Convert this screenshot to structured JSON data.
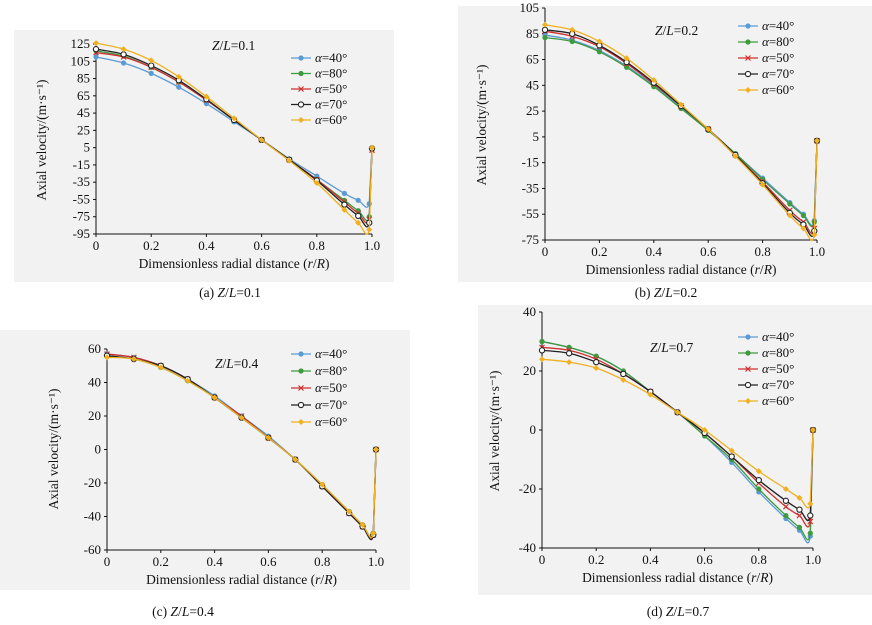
{
  "figure": {
    "series_colors": {
      "α=40°": "#5b9bd5",
      "α=80°": "#3e9a3e",
      "α=50°": "#d03030",
      "α=70°": "#222222",
      "α=60°": "#f0b020"
    }
  },
  "chart_data": [
    {
      "type": "line",
      "panel": "a",
      "caption": "(a) Z/L=0.1",
      "annotation": "Z/L=0.1",
      "xlabel": "Dimensionless radial distance (r/R)",
      "ylabel": "Axial velocity/(m·s⁻¹)",
      "xlim": [
        0,
        1.0
      ],
      "ylim": [
        -95,
        125
      ],
      "xticks": [
        0,
        0.2,
        0.4,
        0.6,
        0.8,
        1.0
      ],
      "yticks": [
        125,
        105,
        85,
        65,
        45,
        25,
        5,
        -15,
        -35,
        -55,
        -75,
        -95
      ],
      "legend_position": "top-right",
      "x": [
        0,
        0.1,
        0.2,
        0.3,
        0.4,
        0.5,
        0.6,
        0.7,
        0.8,
        0.9,
        0.95,
        0.99,
        1.0
      ],
      "series": [
        {
          "name": "α=40°",
          "values": [
            110,
            103,
            91,
            75,
            56,
            35,
            14,
            -8,
            -28,
            -48,
            -56,
            -60,
            5
          ]
        },
        {
          "name": "α=80°",
          "values": [
            117,
            111,
            98,
            81,
            60,
            37,
            14,
            -9,
            -32,
            -56,
            -68,
            -75,
            3
          ]
        },
        {
          "name": "α=50°",
          "values": [
            115,
            110,
            98,
            81,
            60,
            37,
            14,
            -9,
            -32,
            -58,
            -71,
            -78,
            2
          ]
        },
        {
          "name": "α=70°",
          "values": [
            119,
            113,
            100,
            83,
            61,
            37,
            14,
            -9,
            -33,
            -61,
            -74,
            -82,
            4
          ]
        },
        {
          "name": "α=60°",
          "values": [
            126,
            119,
            106,
            87,
            64,
            39,
            14,
            -10,
            -36,
            -67,
            -82,
            -90,
            5
          ]
        }
      ]
    },
    {
      "type": "line",
      "panel": "b",
      "caption": "(b) Z/L=0.2",
      "annotation": "Z/L=0.2",
      "xlabel": "Dimensionless radial distance (r/R)",
      "ylabel": "Axial velocity/(m·s⁻¹)",
      "xlim": [
        0,
        1.0
      ],
      "ylim": [
        -75,
        105
      ],
      "xticks": [
        0,
        0.2,
        0.4,
        0.6,
        0.8,
        1.0
      ],
      "yticks": [
        105,
        85,
        65,
        45,
        25,
        5,
        -15,
        -35,
        -55,
        -75
      ],
      "legend_position": "top-right",
      "x": [
        0,
        0.1,
        0.2,
        0.3,
        0.4,
        0.5,
        0.6,
        0.7,
        0.8,
        0.9,
        0.95,
        0.99,
        1.0
      ],
      "series": [
        {
          "name": "α=40°",
          "values": [
            84,
            80,
            72,
            60,
            45,
            28,
            11,
            -8,
            -27,
            -46,
            -55,
            -60,
            2
          ]
        },
        {
          "name": "α=80°",
          "values": [
            82,
            79,
            71,
            59,
            44,
            27,
            10,
            -8,
            -28,
            -47,
            -56,
            -61,
            2
          ]
        },
        {
          "name": "α=50°",
          "values": [
            87,
            83,
            75,
            62,
            46,
            29,
            11,
            -9,
            -30,
            -52,
            -61,
            -66,
            2
          ]
        },
        {
          "name": "α=70°",
          "values": [
            88,
            85,
            76,
            63,
            47,
            29,
            11,
            -9,
            -31,
            -54,
            -63,
            -68,
            2
          ]
        },
        {
          "name": "α=60°",
          "values": [
            92,
            88,
            79,
            66,
            49,
            30,
            11,
            -10,
            -32,
            -56,
            -66,
            -71,
            2
          ]
        }
      ]
    },
    {
      "type": "line",
      "panel": "c",
      "caption": "(c) Z/L=0.4",
      "annotation": "Z/L=0.4",
      "xlabel": "Dimensionless radial distance (r/R)",
      "ylabel": "Axial velocity/(m·s⁻¹)",
      "xlim": [
        0,
        1.0
      ],
      "ylim": [
        -60,
        60
      ],
      "xticks": [
        0,
        0.2,
        0.4,
        0.6,
        0.8,
        1.0
      ],
      "yticks": [
        60,
        40,
        20,
        0,
        -20,
        -40,
        -60
      ],
      "legend_position": "top-right",
      "x": [
        0,
        0.1,
        0.2,
        0.3,
        0.4,
        0.5,
        0.6,
        0.7,
        0.8,
        0.9,
        0.95,
        0.99,
        1.0
      ],
      "series": [
        {
          "name": "α=40°",
          "values": [
            57,
            55,
            50,
            42,
            32,
            20,
            8,
            -6,
            -21,
            -37,
            -45,
            -50,
            0
          ]
        },
        {
          "name": "α=80°",
          "values": [
            56,
            54,
            49,
            41,
            31,
            19,
            7,
            -6,
            -21,
            -37,
            -45,
            -50,
            0
          ]
        },
        {
          "name": "α=50°",
          "values": [
            57,
            55,
            50,
            42,
            31,
            20,
            7,
            -6,
            -22,
            -38,
            -46,
            -51,
            0
          ]
        },
        {
          "name": "α=70°",
          "values": [
            56,
            54,
            50,
            42,
            31,
            19,
            7,
            -6,
            -22,
            -38,
            -46,
            -51,
            0
          ]
        },
        {
          "name": "α=60°",
          "values": [
            55,
            54,
            49,
            41,
            31,
            19,
            7,
            -6,
            -21,
            -37,
            -45,
            -50,
            0
          ]
        }
      ]
    },
    {
      "type": "line",
      "panel": "d",
      "caption": "(d) Z/L=0.7",
      "annotation": "Z/L=0.7",
      "xlabel": "Dimensionless radial distance (r/R)",
      "ylabel": "Axial velocity/(m·s⁻¹)",
      "xlim": [
        0,
        1.0
      ],
      "ylim": [
        -40,
        40
      ],
      "xticks": [
        0,
        0.2,
        0.4,
        0.6,
        0.8,
        1.0
      ],
      "yticks": [
        40,
        20,
        0,
        -20,
        -40
      ],
      "legend_position": "top-right",
      "x": [
        0,
        0.1,
        0.2,
        0.3,
        0.4,
        0.5,
        0.6,
        0.7,
        0.8,
        0.9,
        0.95,
        0.99,
        1.0
      ],
      "series": [
        {
          "name": "α=40°",
          "values": [
            30,
            28,
            25,
            20,
            13,
            6,
            -2,
            -11,
            -21,
            -30,
            -34,
            -36,
            0
          ]
        },
        {
          "name": "α=80°",
          "values": [
            30,
            28,
            25,
            20,
            13,
            6,
            -2,
            -10,
            -20,
            -29,
            -33,
            -35,
            0
          ]
        },
        {
          "name": "α=50°",
          "values": [
            28,
            27,
            24,
            19,
            13,
            6,
            -1,
            -9,
            -18,
            -26,
            -29,
            -31,
            0
          ]
        },
        {
          "name": "α=70°",
          "values": [
            27,
            26,
            23,
            19,
            13,
            6,
            -1,
            -9,
            -17,
            -24,
            -27,
            -29,
            0
          ]
        },
        {
          "name": "α=60°",
          "values": [
            24,
            23,
            21,
            17,
            12,
            6,
            0,
            -7,
            -14,
            -20,
            -23,
            -25,
            0
          ]
        }
      ]
    }
  ]
}
